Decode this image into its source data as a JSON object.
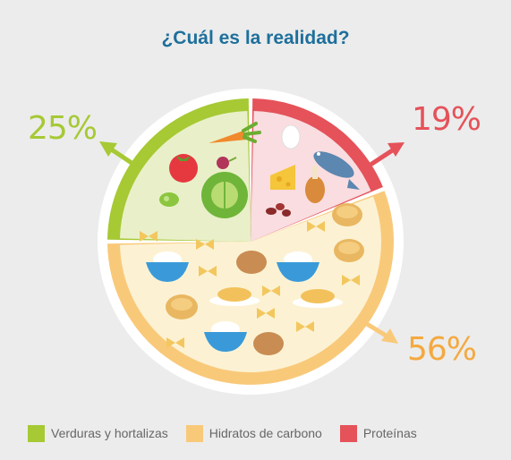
{
  "title": "¿Cuál es la realidad?",
  "chart_data": {
    "type": "pie",
    "title": "¿Cuál es la realidad?",
    "slices": [
      {
        "name": "Verduras y hortalizas",
        "value": 25,
        "label": "25%",
        "color": "#a6c934",
        "fill": "#e9f0c9"
      },
      {
        "name": "Proteínas",
        "value": 19,
        "label": "19%",
        "color": "#e5525a",
        "fill": "#f9dde0"
      },
      {
        "name": "Hidratos de carbono",
        "value": 56,
        "label": "56%",
        "color": "#f9c97a",
        "fill": "#fcf2d3"
      }
    ],
    "legend_position": "bottom-left"
  },
  "legend": [
    {
      "label": "Verduras y hortalizas",
      "color": "#a6c934"
    },
    {
      "label": "Hidratos de carbono",
      "color": "#f9c97a"
    },
    {
      "label": "Proteínas",
      "color": "#e5525a"
    }
  ],
  "icons": {
    "vegetables": [
      "tomato-icon",
      "carrot-icon",
      "beet-icon",
      "lettuce-icon",
      "pea-icon"
    ],
    "proteins": [
      "egg-icon",
      "cheese-icon",
      "fish-icon",
      "chicken-leg-icon",
      "beans-icon"
    ],
    "carbs": [
      "bread-roll-icon",
      "rice-bowl-icon",
      "pasta-plate-icon",
      "farfalle-icon",
      "potato-icon"
    ]
  }
}
